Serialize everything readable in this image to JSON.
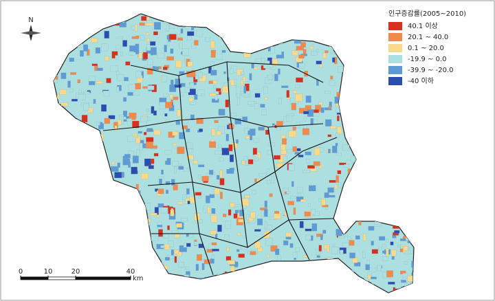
{
  "legend": {
    "title": "인구증감률(2005~2010)",
    "items": [
      {
        "label": "40.1 이상",
        "color": "#d7301f"
      },
      {
        "label": "20.1 ~ 40.0",
        "color": "#ef8a4c"
      },
      {
        "label": "0.1 ~ 20.0",
        "color": "#f9d98c"
      },
      {
        "label": "-19.9 ~ 0.0",
        "color": "#acdfe0"
      },
      {
        "label": "-39.9 ~ -20.0",
        "color": "#5d9ad6"
      },
      {
        "label": "-40 이하",
        "color": "#2c4db0"
      }
    ]
  },
  "north_arrow": {
    "label": "N"
  },
  "scale_bar": {
    "ticks": [
      0,
      10,
      20,
      40
    ],
    "unit": "km"
  }
}
